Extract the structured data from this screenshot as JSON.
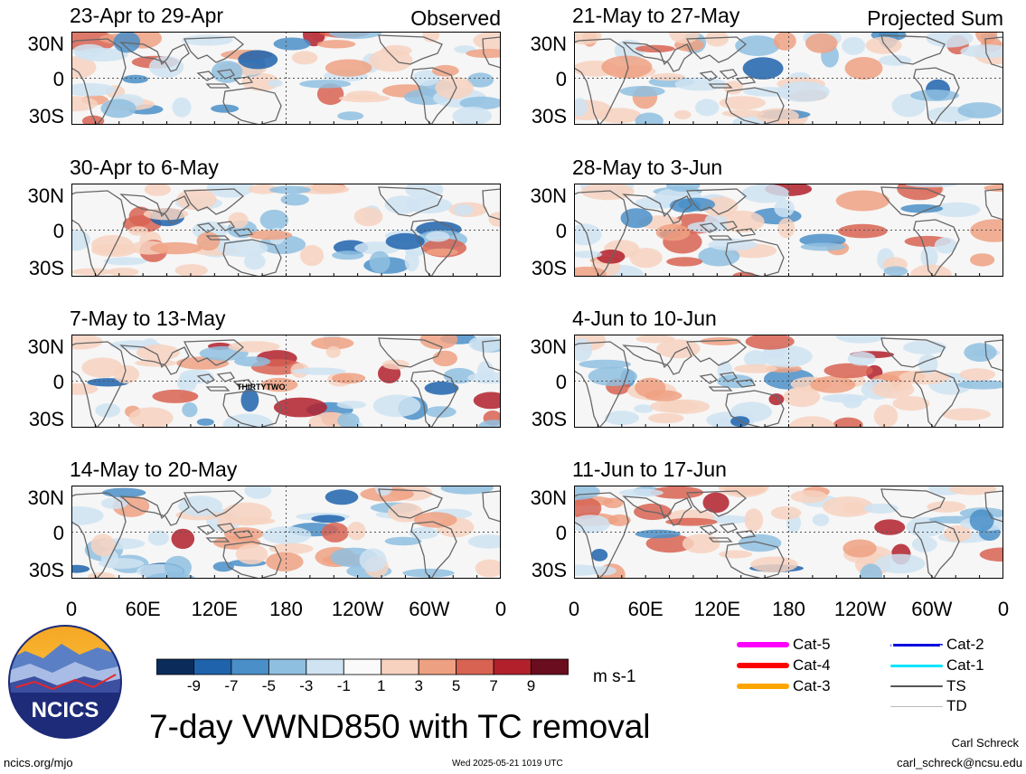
{
  "panels": [
    {
      "title": "23-Apr to 29-Apr",
      "tag": "Observed",
      "annotation": ""
    },
    {
      "title": "30-Apr to 6-May",
      "tag": "",
      "annotation": ""
    },
    {
      "title": "7-May to 13-May",
      "tag": "",
      "annotation": "THIRTYTWO"
    },
    {
      "title": "14-May to 20-May",
      "tag": "",
      "annotation": ""
    },
    {
      "title": "21-May to 27-May",
      "tag": "Projected Sum",
      "annotation": ""
    },
    {
      "title": "28-May to 3-Jun",
      "tag": "",
      "annotation": ""
    },
    {
      "title": "4-Jun to 10-Jun",
      "tag": "",
      "annotation": ""
    },
    {
      "title": "11-Jun to 17-Jun",
      "tag": "",
      "annotation": ""
    }
  ],
  "lat_labels": [
    "30N",
    "0",
    "30S"
  ],
  "lon_labels": [
    "0",
    "60E",
    "120E",
    "180",
    "120W",
    "60W",
    "0"
  ],
  "colorbar": {
    "ticks": [
      "-9",
      "-7",
      "-5",
      "-3",
      "-1",
      "1",
      "3",
      "5",
      "7",
      "9"
    ],
    "colors": [
      "#0b2c5a",
      "#1f63ad",
      "#4a8fc8",
      "#8fbfe0",
      "#cfe3f2",
      "#fafafa",
      "#f7d2bf",
      "#eea182",
      "#d86352",
      "#b1202b",
      "#6a0d1e"
    ],
    "units": "m s-1"
  },
  "legend": [
    {
      "label": "Cat-5",
      "color": "#ff00ff",
      "style": "thick"
    },
    {
      "label": "Cat-2",
      "color": "#0000dd",
      "style": "dotted"
    },
    {
      "label": "Cat-4",
      "color": "#ff0000",
      "style": "thick"
    },
    {
      "label": "Cat-1",
      "color": "#00e5ff",
      "style": "medium"
    },
    {
      "label": "Cat-3",
      "color": "#ffa500",
      "style": "thick"
    },
    {
      "label": "TS",
      "color": "#555555",
      "style": "thin"
    },
    {
      "label": "TD",
      "color": "#bbbbbb",
      "style": "hair"
    }
  ],
  "logo_text": "NCICS",
  "main_title": "7-day VWND850 with TC removal",
  "footer": {
    "left": "ncics.org/mjo",
    "center": "Wed 2025-05-21 1019 UTC",
    "author": "Carl Schreck",
    "email": "carl_schreck@ncsu.edu"
  }
}
